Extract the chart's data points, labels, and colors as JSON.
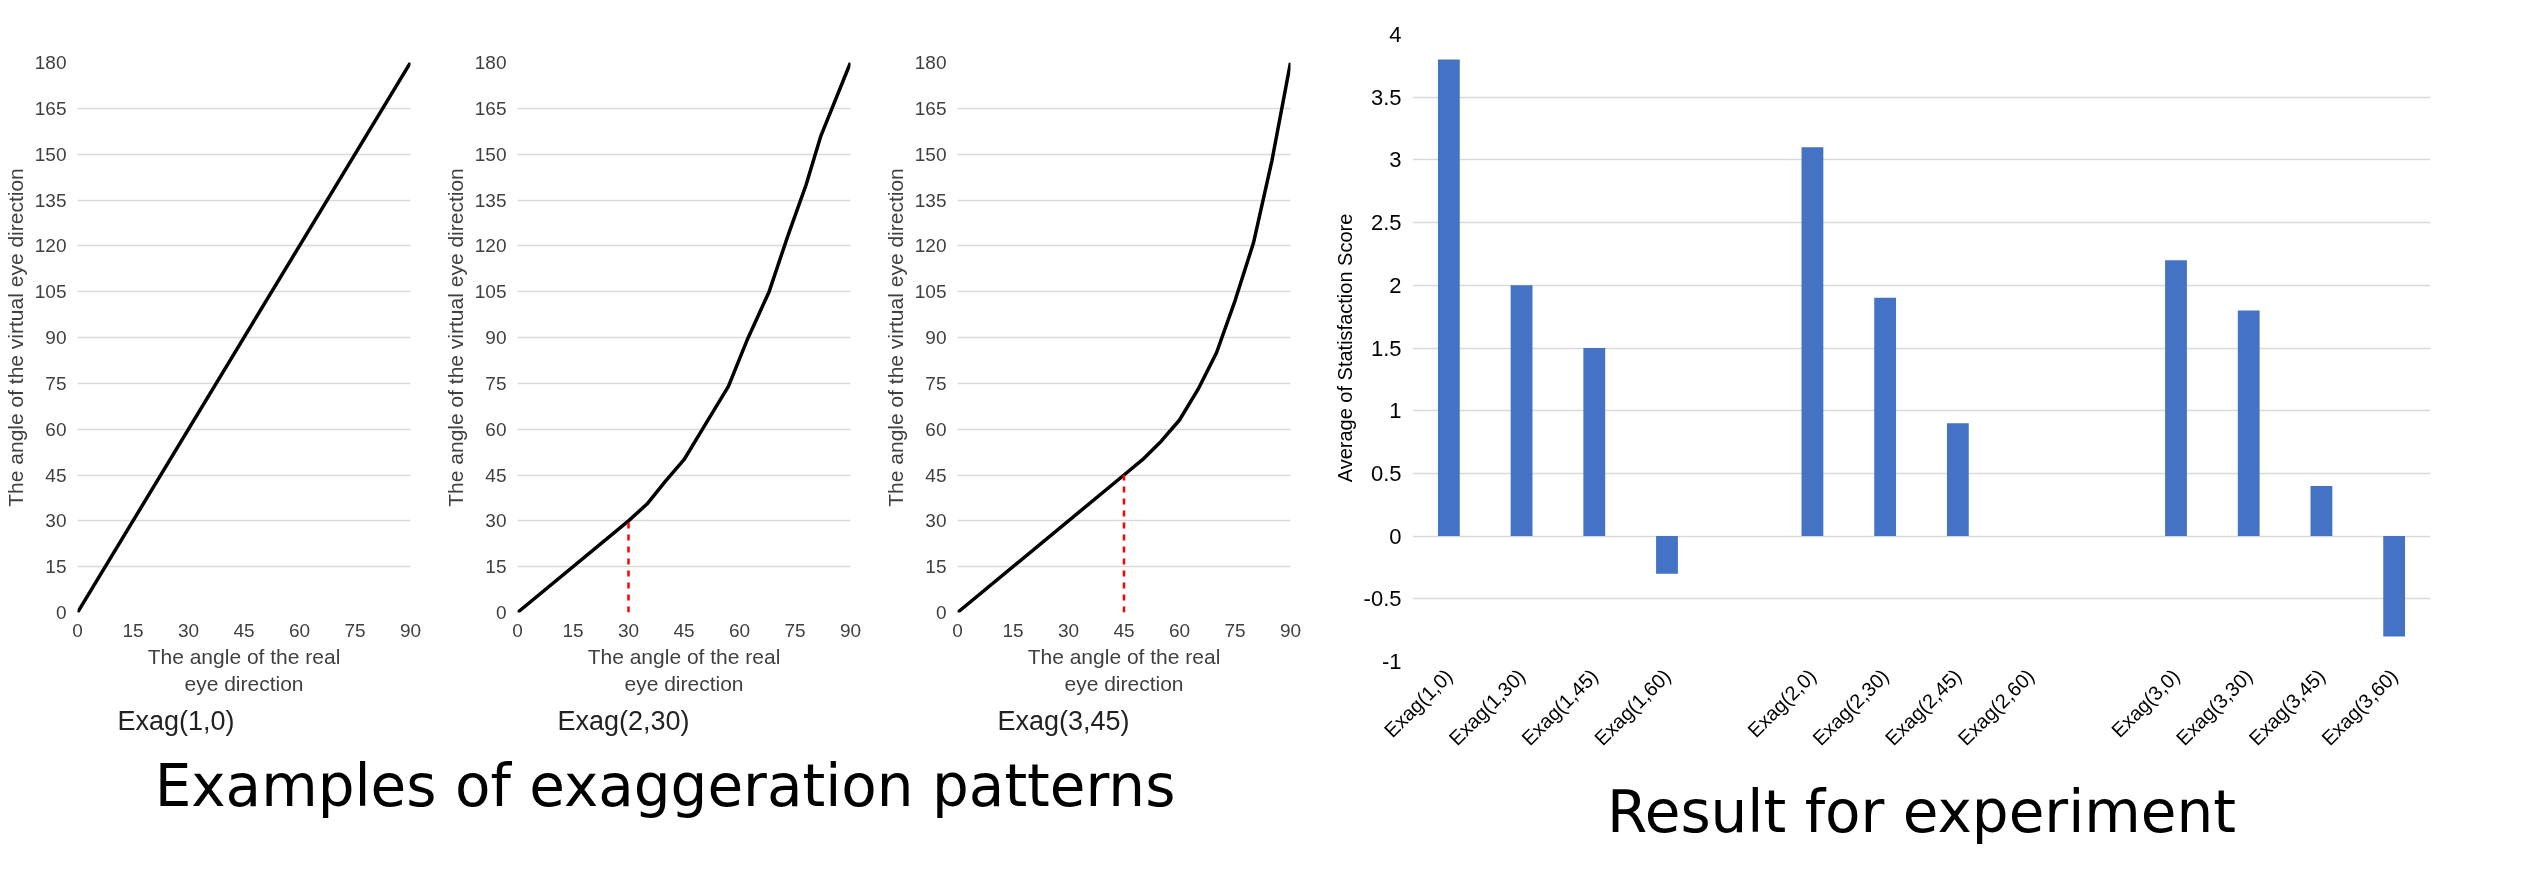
{
  "chart_data": [
    {
      "type": "line",
      "title": "Exag(1,0)",
      "xlabel": "The angle of the real\neye direction",
      "ylabel": "The angle of the virtual eye direction",
      "xlim": [
        0,
        90
      ],
      "ylim": [
        0,
        180
      ],
      "xticks": [
        0,
        15,
        30,
        45,
        60,
        75,
        90
      ],
      "yticks": [
        0,
        15,
        30,
        45,
        60,
        75,
        90,
        105,
        120,
        135,
        150,
        165,
        180
      ],
      "grid": "y",
      "series": [
        {
          "color": "#000000",
          "x": [
            0,
            90
          ],
          "values": [
            0,
            180
          ]
        }
      ]
    },
    {
      "type": "line",
      "title": "Exag(2,30)",
      "xlabel": "The angle of the real\neye direction",
      "ylabel": "The angle of the virtual eye direction",
      "xlim": [
        0,
        90
      ],
      "ylim": [
        0,
        180
      ],
      "xticks": [
        0,
        15,
        30,
        45,
        60,
        75,
        90
      ],
      "yticks": [
        0,
        15,
        30,
        45,
        60,
        75,
        90,
        105,
        120,
        135,
        150,
        165,
        180
      ],
      "grid": "y",
      "annotations": [
        "Examples of exaggeration patterns"
      ],
      "series": [
        {
          "color": "#000000",
          "x": [
            0,
            30,
            35,
            40,
            45,
            50,
            57,
            62,
            68,
            73,
            78,
            82,
            90
          ],
          "values": [
            0,
            30,
            35.5,
            43,
            50,
            60,
            74,
            89,
            105,
            123,
            140,
            156,
            180
          ]
        },
        {
          "color": "#ff0000",
          "line_style": "dashed",
          "x": [
            30,
            30
          ],
          "values": [
            0,
            30
          ]
        }
      ]
    },
    {
      "type": "line",
      "title": "Exag(3,45)",
      "xlabel": "The angle of the real\neye direction",
      "ylabel": "The angle of the virtual eye direction",
      "xlim": [
        0,
        90
      ],
      "ylim": [
        0,
        180
      ],
      "xticks": [
        0,
        15,
        30,
        45,
        60,
        75,
        90
      ],
      "yticks": [
        0,
        15,
        30,
        45,
        60,
        75,
        90,
        105,
        120,
        135,
        150,
        165,
        180
      ],
      "grid": "y",
      "series": [
        {
          "color": "#000000",
          "x": [
            0,
            45,
            50,
            55,
            60,
            65,
            70,
            75,
            80,
            85,
            90
          ],
          "values": [
            0,
            45,
            50,
            56,
            63,
            73,
            85,
            102,
            121,
            148,
            180
          ]
        },
        {
          "color": "#ff0000",
          "line_style": "dashed",
          "x": [
            45,
            45
          ],
          "values": [
            0,
            45
          ]
        }
      ]
    },
    {
      "type": "bar",
      "title": "Result for experiment",
      "ylabel": "Average of Statisfaction Score",
      "categories": [
        "Exag(1,0)",
        "Exag(1,30)",
        "Exag(1,45)",
        "Exag(1,60)",
        null,
        "Exag(2,0)",
        "Exag(2,30)",
        "Exag(2,45)",
        "Exag(2,60)",
        null,
        "Exag(3,0)",
        "Exag(3,30)",
        "Exag(3,45)",
        "Exag(3,60)"
      ],
      "ylim": [
        -1,
        4
      ],
      "yticks": [
        -1,
        -0.5,
        0,
        0.5,
        1,
        1.5,
        2,
        2.5,
        3,
        3.5,
        4
      ],
      "grid": "y",
      "series": [
        {
          "color": "#4472c4",
          "values": [
            3.8,
            2.0,
            1.5,
            -0.3,
            null,
            3.1,
            1.9,
            0.9,
            null,
            null,
            2.2,
            1.8,
            0.4,
            -0.8
          ]
        }
      ]
    }
  ]
}
